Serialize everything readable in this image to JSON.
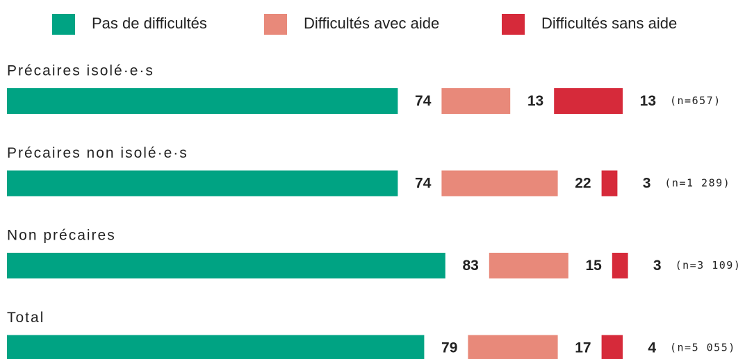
{
  "chart_data": {
    "type": "bar",
    "orientation": "horizontal",
    "stacked": true,
    "categories": [
      "Précaires isolé·e·s",
      "Précaires non isolé·e·s",
      "Non précaires",
      "Total"
    ],
    "series": [
      {
        "name": "Pas de difficultés",
        "color": "#00a383",
        "values": [
          74,
          74,
          83,
          79
        ]
      },
      {
        "name": "Difficultés avec aide",
        "color": "#e8897a",
        "values": [
          13,
          22,
          15,
          17
        ]
      },
      {
        "name": "Difficultés sans aide",
        "color": "#d62a3a",
        "values": [
          13,
          3,
          3,
          4
        ]
      }
    ],
    "annotations": [
      "(n=657)",
      "(n=1 289)",
      "(n=3 109)",
      "(n=5 055)"
    ],
    "legend": "top"
  }
}
